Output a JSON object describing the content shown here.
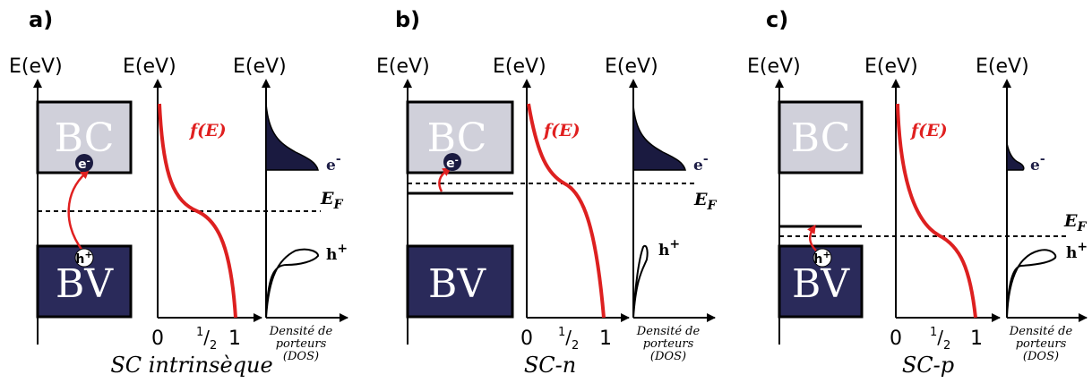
{
  "panels": [
    {
      "label": "a)",
      "energy_axis": "E(eV)",
      "conduction_band": "BC",
      "valence_band": "BV",
      "fermi_level": "E",
      "fermi_subscript": "F",
      "fermi_function": "f(E)",
      "electron": "e",
      "electron_sign": "-",
      "hole": "h",
      "hole_sign": "+",
      "x_ticks": [
        "0",
        "1",
        "/",
        "2",
        "1"
      ],
      "dos_label": [
        "Densité de",
        "porteurs",
        "(DOS)"
      ],
      "caption": "SC intrinsèque"
    },
    {
      "label": "b)",
      "energy_axis": "E(eV)",
      "conduction_band": "BC",
      "valence_band": "BV",
      "fermi_level": "E",
      "fermi_subscript": "F",
      "fermi_function": "f(E)",
      "electron": "e",
      "electron_sign": "-",
      "hole": "h",
      "hole_sign": "+",
      "x_ticks": [
        "0",
        "1",
        "/",
        "2",
        "1"
      ],
      "dos_label": [
        "Densité de",
        "porteurs",
        "(DOS)"
      ],
      "caption": "SC-n"
    },
    {
      "label": "c)",
      "energy_axis": "E(eV)",
      "conduction_band": "BC",
      "valence_band": "BV",
      "fermi_level": "E",
      "fermi_subscript": "F",
      "fermi_function": "f(E)",
      "electron": "e",
      "electron_sign": "-",
      "hole": "h",
      "hole_sign": "+",
      "x_ticks": [
        "0",
        "1",
        "/",
        "2",
        "1"
      ],
      "dos_label": [
        "Densité de",
        "porteurs",
        "(DOS)"
      ],
      "caption": "SC-p"
    }
  ],
  "colors": {
    "conduction_band": "#d0d0da",
    "valence_band": "#2a2a5a",
    "fermi_curve": "#dd2020",
    "electron": "#1a1a40"
  }
}
